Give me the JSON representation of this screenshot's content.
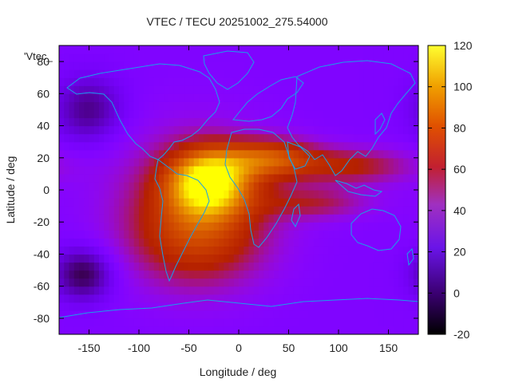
{
  "chart_data": {
    "type": "heatmap",
    "title": "VTEC / TECU 20251002_275.54000",
    "xlabel": "Longitude / deg",
    "ylabel": "Latitude / deg",
    "key_label": "'Vtec_",
    "xlim": [
      -180,
      180
    ],
    "ylim": [
      -90,
      90
    ],
    "xticks": [
      -150,
      -100,
      -50,
      0,
      50,
      100,
      150
    ],
    "yticks": [
      80,
      60,
      40,
      20,
      0,
      -20,
      -40,
      -60,
      -80
    ],
    "colorbar": {
      "range": [
        -20,
        120
      ],
      "ticks": [
        120,
        100,
        80,
        60,
        40,
        20,
        0,
        -20
      ],
      "palette": "gnuplot-pm3d"
    },
    "background_level": 15,
    "ionosphere_features": [
      {
        "name": "equatorial-anomaly-americas-atlantic",
        "lon": -30,
        "lat": 5,
        "peak": 110,
        "lon_spread": 28,
        "lat_spread": 14
      },
      {
        "name": "broad-enhancement-south-atlantic",
        "lon": -45,
        "lat": -10,
        "peak": 55,
        "lon_spread": 55,
        "lat_spread": 32
      },
      {
        "name": "southern-crest",
        "lon": -40,
        "lat": -30,
        "peak": 45,
        "lon_spread": 45,
        "lat_spread": 20
      },
      {
        "name": "northern-crest-africa",
        "lon": 20,
        "lat": 18,
        "peak": 50,
        "lon_spread": 35,
        "lat_spread": 9
      },
      {
        "name": "northern-crest-asia",
        "lon": 110,
        "lat": 15,
        "peak": 55,
        "lon_spread": 45,
        "lat_spread": 8
      },
      {
        "name": "southern-crest-indian",
        "lon": 75,
        "lat": -8,
        "peak": 45,
        "lon_spread": 40,
        "lat_spread": 7
      },
      {
        "name": "north-african-crest",
        "lon": 40,
        "lat": 22,
        "peak": 40,
        "lon_spread": 30,
        "lat_spread": 8
      },
      {
        "name": "dark-trough-south-pacific",
        "lon": -155,
        "lat": -52,
        "peak": -15,
        "lon_spread": 22,
        "lat_spread": 12
      },
      {
        "name": "dark-trough-north-pacific",
        "lon": -150,
        "lat": 50,
        "peak": -8,
        "lon_spread": 25,
        "lat_spread": 15
      }
    ]
  }
}
